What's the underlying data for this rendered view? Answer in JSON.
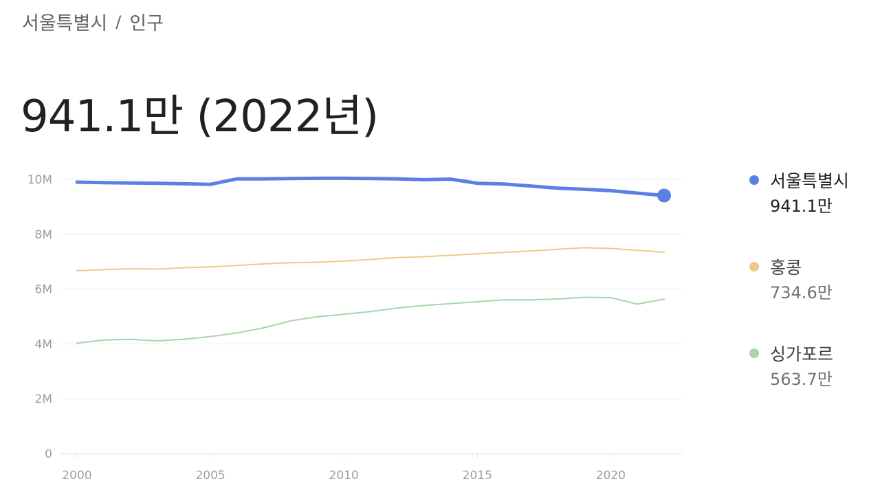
{
  "breadcrumb": {
    "parent": "서울특별시",
    "separator": "/",
    "current": "인구"
  },
  "headline": "941.1만 (2022년)",
  "legend": [
    {
      "name": "서울특별시",
      "value": "941.1만",
      "color": "#5b7fe3"
    },
    {
      "name": "홍콩",
      "value": "734.6만",
      "color": "#f0c987"
    },
    {
      "name": "싱가포르",
      "value": "563.7만",
      "color": "#a8d5a8"
    }
  ],
  "chart_data": {
    "type": "line",
    "title": "",
    "xlabel": "",
    "ylabel": "",
    "x": [
      2000,
      2001,
      2002,
      2003,
      2004,
      2005,
      2006,
      2007,
      2008,
      2009,
      2010,
      2011,
      2012,
      2013,
      2014,
      2015,
      2016,
      2017,
      2018,
      2019,
      2020,
      2021,
      2022
    ],
    "xlim": [
      2000,
      2022
    ],
    "ylim": [
      0,
      10000000
    ],
    "x_ticks": [
      2000,
      2005,
      2010,
      2015,
      2020
    ],
    "y_ticks": [
      {
        "value": 0,
        "label": "0"
      },
      {
        "value": 2000000,
        "label": "2M"
      },
      {
        "value": 4000000,
        "label": "4M"
      },
      {
        "value": 6000000,
        "label": "6M"
      },
      {
        "value": 8000000,
        "label": "8M"
      },
      {
        "value": 10000000,
        "label": "10M"
      }
    ],
    "grid": true,
    "legend_position": "right",
    "series": [
      {
        "name": "서울특별시",
        "color": "#5b7fe3",
        "emphasis": true,
        "values": [
          9900000,
          9880000,
          9870000,
          9860000,
          9840000,
          9820000,
          10020000,
          10020000,
          10030000,
          10040000,
          10040000,
          10030000,
          10020000,
          9990000,
          10010000,
          9860000,
          9830000,
          9760000,
          9680000,
          9640000,
          9590000,
          9500000,
          9411000
        ]
      },
      {
        "name": "홍콩",
        "color": "#f0c987",
        "emphasis": false,
        "values": [
          6670000,
          6710000,
          6740000,
          6730000,
          6780000,
          6810000,
          6860000,
          6920000,
          6960000,
          6980000,
          7020000,
          7080000,
          7150000,
          7180000,
          7230000,
          7290000,
          7340000,
          7390000,
          7450000,
          7510000,
          7480000,
          7410000,
          7346000
        ]
      },
      {
        "name": "싱가포르",
        "color": "#a8d5a8",
        "emphasis": false,
        "values": [
          4030000,
          4140000,
          4170000,
          4110000,
          4170000,
          4270000,
          4400000,
          4590000,
          4840000,
          4990000,
          5080000,
          5180000,
          5310000,
          5400000,
          5470000,
          5540000,
          5610000,
          5610000,
          5640000,
          5700000,
          5690000,
          5450000,
          5637000
        ]
      }
    ]
  }
}
